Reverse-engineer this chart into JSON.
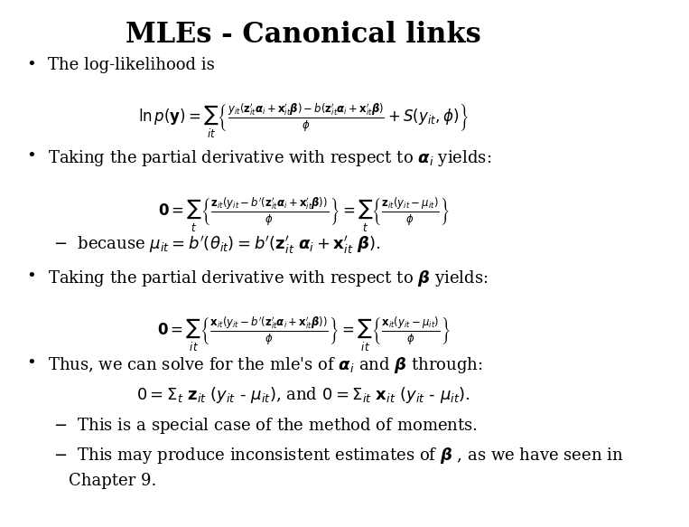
{
  "title": "MLEs - Canonical links",
  "background_color": "#ffffff",
  "figsize": [
    7.63,
    5.83
  ],
  "dpi": 100,
  "title_fontsize": 22,
  "title_fontweight": "bold",
  "content_fontsize": 13,
  "math_fontsize": 12
}
